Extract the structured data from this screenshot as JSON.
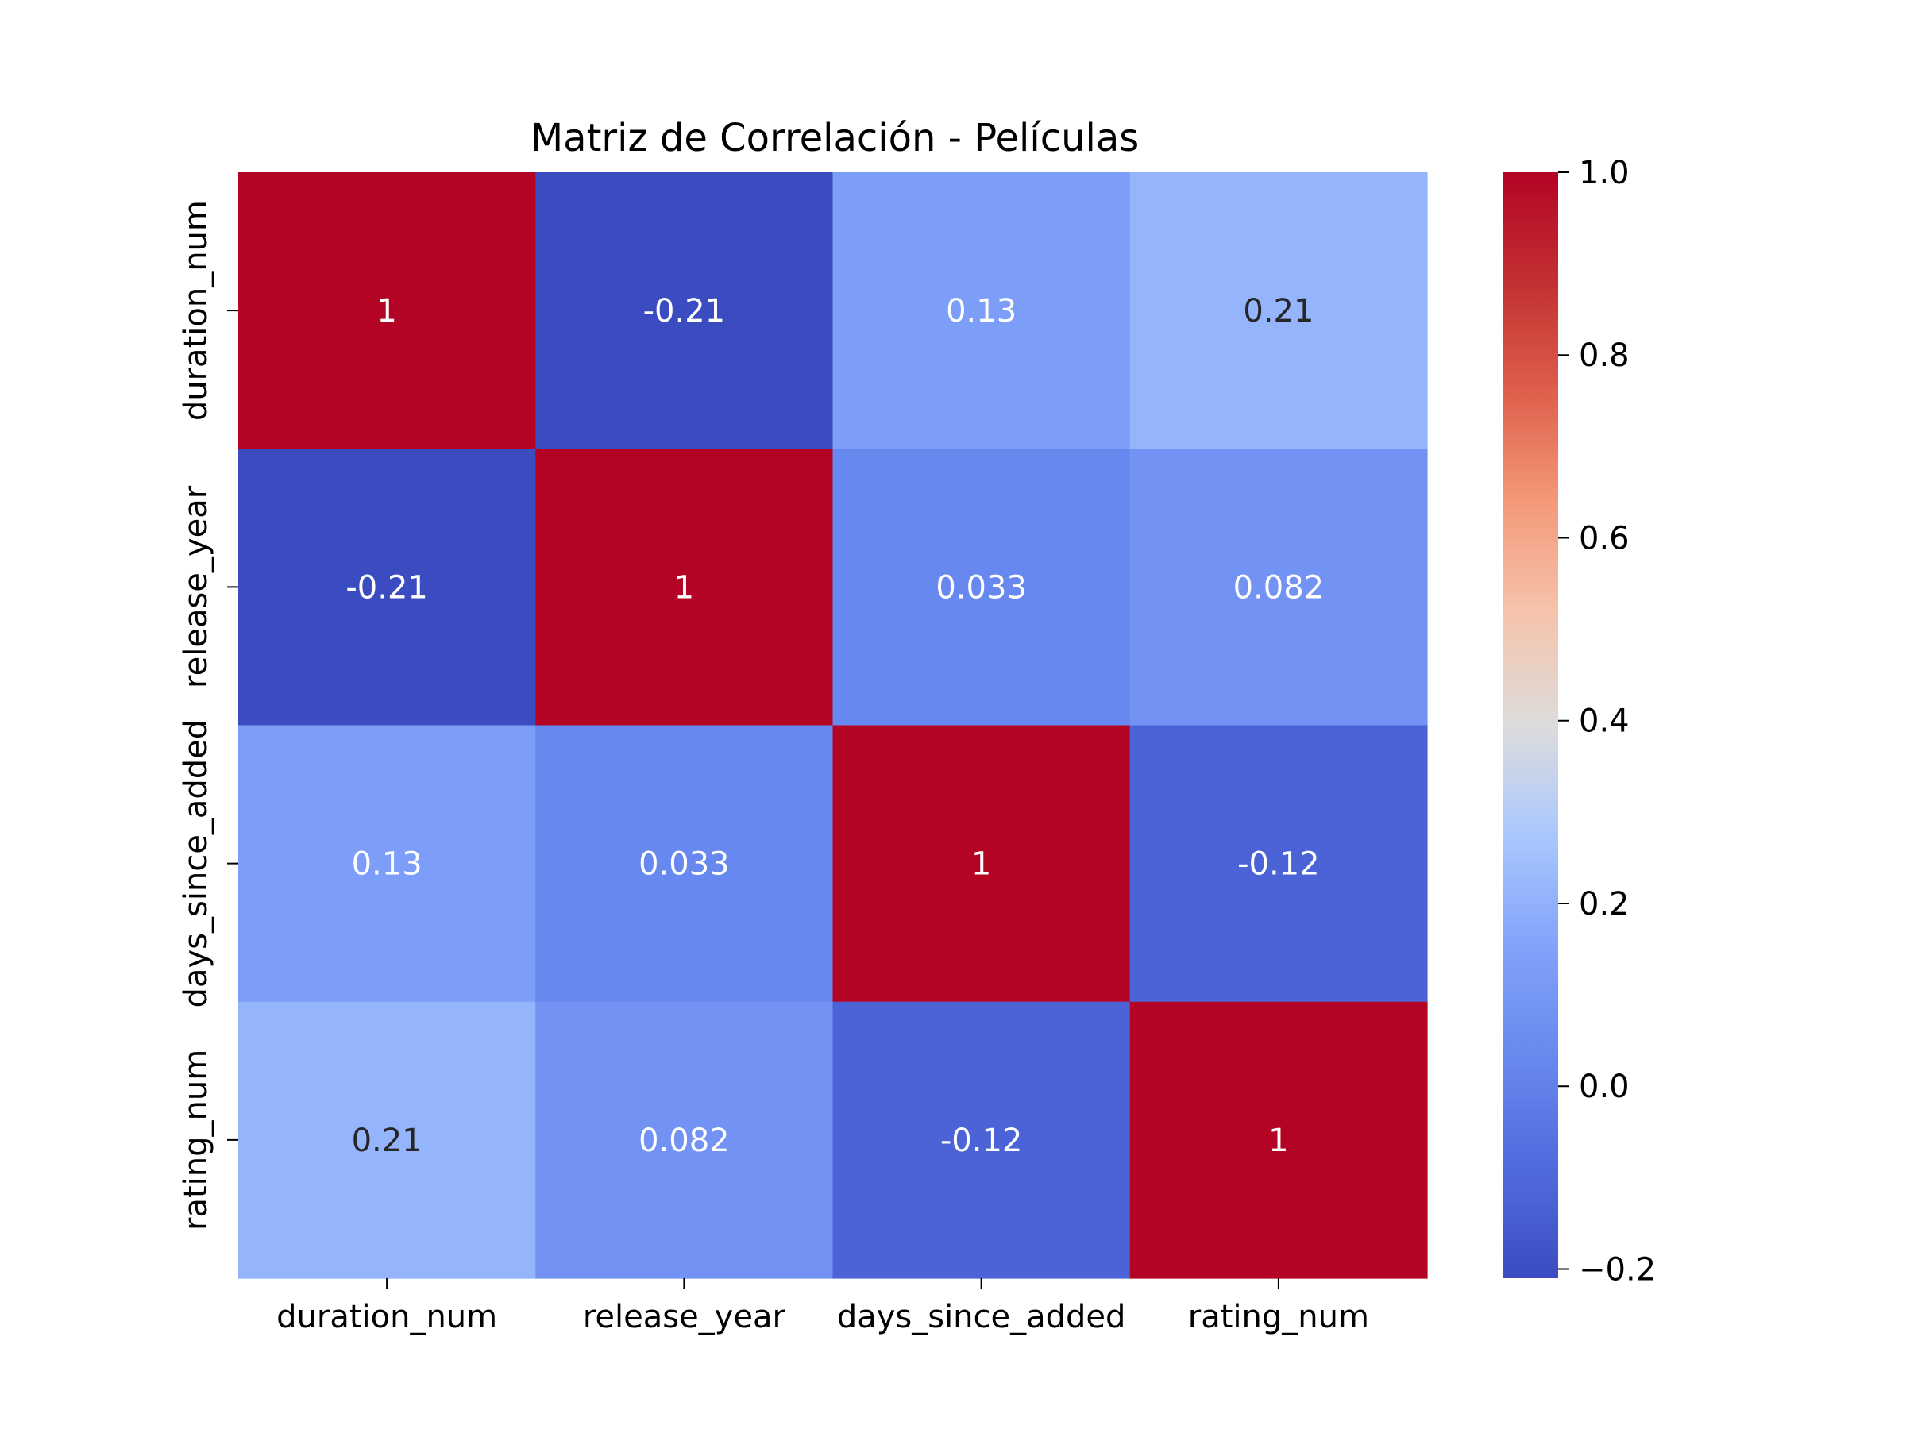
{
  "chart_data": {
    "type": "heatmap",
    "title": "Matriz de Correlación - Películas",
    "x_labels": [
      "duration_num",
      "release_year",
      "days_since_added",
      "rating_num"
    ],
    "y_labels": [
      "duration_num",
      "release_year",
      "days_since_added",
      "rating_num"
    ],
    "values": [
      [
        1,
        -0.21,
        0.13,
        0.21
      ],
      [
        -0.21,
        1,
        0.033,
        0.082
      ],
      [
        0.13,
        0.033,
        1,
        -0.12
      ],
      [
        0.21,
        0.082,
        -0.12,
        1
      ]
    ],
    "annotations": [
      [
        "1",
        "-0.21",
        "0.13",
        "0.21"
      ],
      [
        "-0.21",
        "1",
        "0.033",
        "0.082"
      ],
      [
        "0.13",
        "0.033",
        "1",
        "-0.12"
      ],
      [
        "0.21",
        "0.082",
        "-0.12",
        "1"
      ]
    ],
    "colormap": "coolwarm",
    "vmin": -0.21,
    "vmax": 1.0,
    "colorbar_ticks": [
      1.0,
      0.8,
      0.6,
      0.4,
      0.2,
      0.0,
      -0.2
    ],
    "colorbar_tick_labels": [
      "1.0",
      "0.8",
      "0.6",
      "0.4",
      "0.2",
      "0.0",
      "−0.2"
    ],
    "colorbar_position": "right",
    "grid": false
  }
}
